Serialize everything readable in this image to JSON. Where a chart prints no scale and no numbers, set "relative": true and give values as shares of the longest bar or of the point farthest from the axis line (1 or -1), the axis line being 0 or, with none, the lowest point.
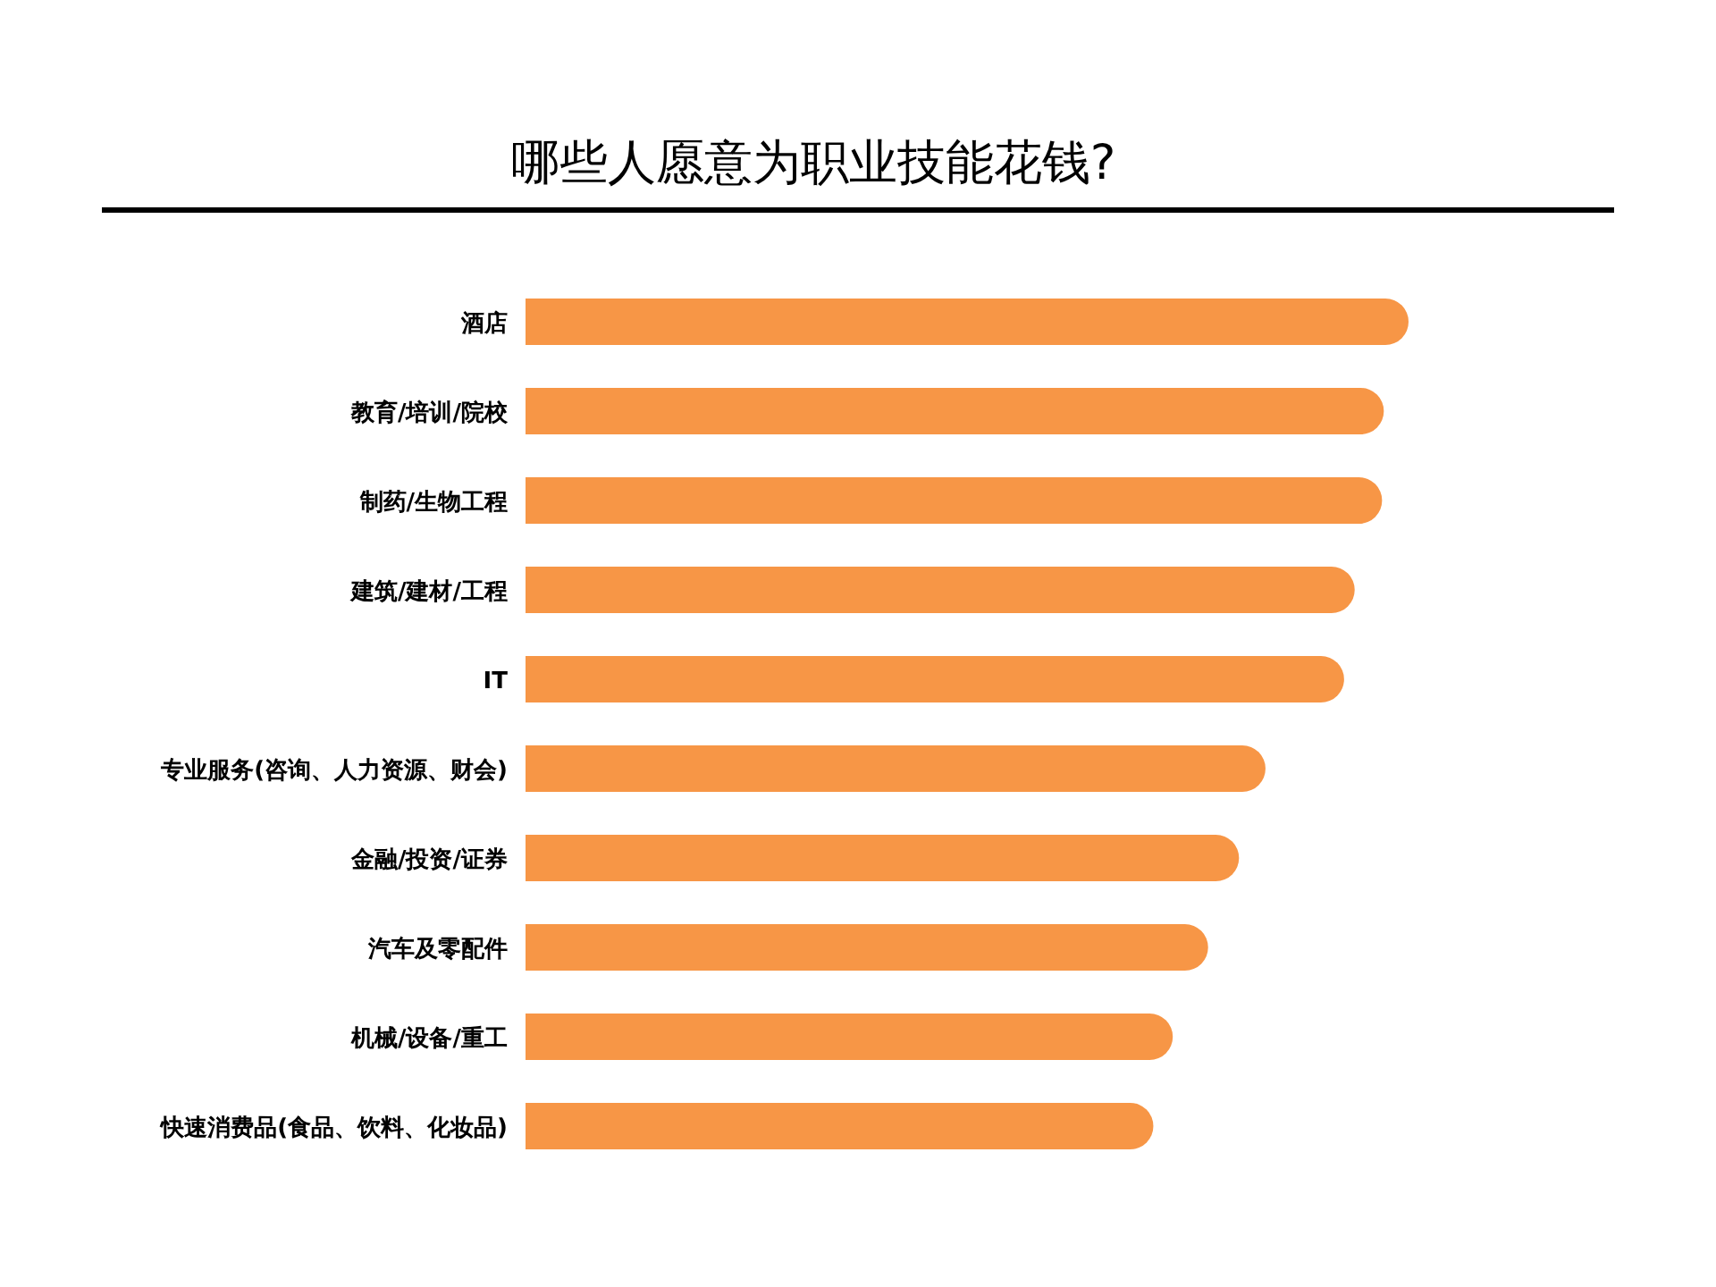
{
  "chart_data": {
    "type": "bar",
    "orientation": "horizontal",
    "relative": true,
    "title": "哪些人愿意为职业技能花钱?",
    "categories": [
      "酒店",
      "教育/培训/院校",
      "制药/生物工程",
      "建筑/建材/工程",
      "IT",
      "专业服务(咨询、人力资源、财会)",
      "金融/投资/证券",
      "汽车及零配件",
      "机械/设备/重工",
      "快速消费品(食品、饮料、化妆品)"
    ],
    "values": [
      1,
      0.972,
      0.97,
      0.939,
      0.927,
      0.838,
      0.808,
      0.773,
      0.733,
      0.711
    ],
    "color": "#f79646"
  }
}
